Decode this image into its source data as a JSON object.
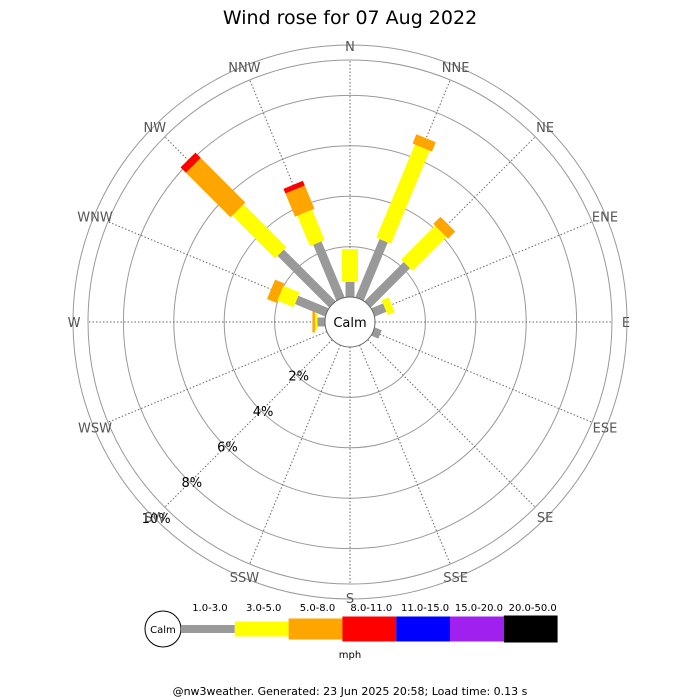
{
  "chart_data": {
    "type": "windrose",
    "title": "Wind rose for 07 Aug 2022",
    "directions": [
      "N",
      "NNE",
      "NE",
      "ENE",
      "E",
      "ESE",
      "SE",
      "SSE",
      "S",
      "SSW",
      "SW",
      "WSW",
      "W",
      "WNW",
      "NW",
      "NNW"
    ],
    "ring_labels": [
      "2%",
      "4%",
      "6%",
      "8%",
      "10%"
    ],
    "ring_values": [
      2,
      4,
      6,
      8,
      10
    ],
    "calm_label": "Calm",
    "unit": "mph",
    "speed_bins": [
      {
        "label": "1.0-3.0",
        "color": "#999999"
      },
      {
        "label": "3.0-5.0",
        "color": "#ffff00"
      },
      {
        "label": "5.0-8.0",
        "color": "#ffa500"
      },
      {
        "label": "8.0-11.0",
        "color": "#ff0000"
      },
      {
        "label": "11.0-15.0",
        "color": "#0000ff"
      },
      {
        "label": "15.0-20.0",
        "color": "#a020f0"
      },
      {
        "label": "20.0-50.0",
        "color": "#000000"
      }
    ],
    "series_cumulative_percent": {
      "N": [
        0.6,
        1.9
      ],
      "NNE": [
        2.5,
        6.5,
        6.9
      ],
      "NE": [
        2.2,
        4.1,
        4.5
      ],
      "ENE": [
        0.5,
        0.8
      ],
      "E": [],
      "ESE": [
        0.3
      ],
      "SE": [],
      "SSE": [],
      "S": [],
      "SSW": [],
      "SW": [],
      "WSW": [],
      "W": [
        0.3,
        0.4,
        0.5
      ],
      "WNW": [
        1.3,
        2.0,
        2.4
      ],
      "NW": [
        2.9,
        5.3,
        7.8,
        8.1
      ],
      "NNW": [
        2.4,
        3.7,
        4.7,
        4.9
      ]
    }
  },
  "footer": "@nw3weather. Generated: 23 Jun 2025 20:58; Load time: 0.13 s"
}
